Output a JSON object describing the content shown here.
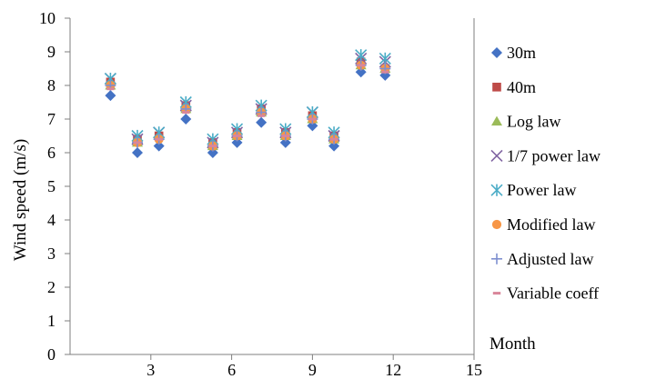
{
  "chart_data": {
    "type": "scatter",
    "ylabel": "Wind speed (m/s)",
    "xlabel": "Month",
    "xlim": [
      0,
      15
    ],
    "ylim": [
      0,
      10
    ],
    "x_ticks": [
      3,
      6,
      9,
      12,
      15
    ],
    "y_ticks": [
      0,
      1,
      2,
      3,
      4,
      5,
      6,
      7,
      8,
      9,
      10
    ],
    "grid": false,
    "legend_position": "right",
    "series": [
      {
        "name": "30m",
        "marker": "diamond",
        "color": "#4472c4",
        "x": [
          1.5,
          2.5,
          3.3,
          4.3,
          5.3,
          6.2,
          7.1,
          8.0,
          9.0,
          9.8,
          10.8,
          11.7
        ],
        "y": [
          7.7,
          6.0,
          6.2,
          7.0,
          6.0,
          6.3,
          6.9,
          6.3,
          6.8,
          6.2,
          8.4,
          8.3
        ]
      },
      {
        "name": "40m",
        "marker": "square",
        "color": "#be4b48",
        "x": [
          1.5,
          2.5,
          3.3,
          4.3,
          5.3,
          6.2,
          7.1,
          8.0,
          9.0,
          9.8,
          10.8,
          11.7
        ],
        "y": [
          8.1,
          6.4,
          6.5,
          7.4,
          6.3,
          6.6,
          7.3,
          6.6,
          7.1,
          6.5,
          8.7,
          8.5
        ]
      },
      {
        "name": "Log law",
        "marker": "triangle",
        "color": "#9bbb59",
        "x": [
          1.5,
          2.5,
          3.3,
          4.3,
          5.3,
          6.2,
          7.1,
          8.0,
          9.0,
          9.8,
          10.8,
          11.7
        ],
        "y": [
          8.0,
          6.3,
          6.5,
          7.3,
          6.2,
          6.5,
          7.2,
          6.5,
          7.0,
          6.4,
          8.6,
          8.5
        ]
      },
      {
        "name": "1/7 power law",
        "marker": "x",
        "color": "#8064a2",
        "x": [
          1.5,
          2.5,
          3.3,
          4.3,
          5.3,
          6.2,
          7.1,
          8.0,
          9.0,
          9.8,
          10.8,
          11.7
        ],
        "y": [
          8.2,
          6.4,
          6.6,
          7.4,
          6.3,
          6.6,
          7.3,
          6.6,
          7.2,
          6.5,
          8.8,
          8.7
        ]
      },
      {
        "name": "Power law",
        "marker": "asterisk",
        "color": "#4bacc6",
        "x": [
          1.5,
          2.5,
          3.3,
          4.3,
          5.3,
          6.2,
          7.1,
          8.0,
          9.0,
          9.8,
          10.8,
          11.7
        ],
        "y": [
          8.2,
          6.5,
          6.6,
          7.5,
          6.4,
          6.7,
          7.4,
          6.7,
          7.2,
          6.6,
          8.9,
          8.8
        ]
      },
      {
        "name": "Modified law",
        "marker": "circle",
        "color": "#f79646",
        "x": [
          1.5,
          2.5,
          3.3,
          4.3,
          5.3,
          6.2,
          7.1,
          8.0,
          9.0,
          9.8,
          10.8,
          11.7
        ],
        "y": [
          8.0,
          6.3,
          6.4,
          7.3,
          6.2,
          6.5,
          7.2,
          6.5,
          7.0,
          6.4,
          8.6,
          8.5
        ]
      },
      {
        "name": "Adjusted law",
        "marker": "plus",
        "color": "#7f8fd0",
        "x": [
          1.5,
          2.5,
          3.3,
          4.3,
          5.3,
          6.2,
          7.1,
          8.0,
          9.0,
          9.8,
          10.8,
          11.7
        ],
        "y": [
          8.0,
          6.3,
          6.4,
          7.3,
          6.2,
          6.5,
          7.2,
          6.5,
          7.0,
          6.4,
          8.6,
          8.5
        ]
      },
      {
        "name": "Variable coeff",
        "marker": "dash",
        "color": "#d9869a",
        "x": [
          1.5,
          2.5,
          3.3,
          4.3,
          5.3,
          6.2,
          7.1,
          8.0,
          9.0,
          9.8,
          10.8,
          11.7
        ],
        "y": [
          7.9,
          6.3,
          6.4,
          7.2,
          6.2,
          6.5,
          7.1,
          6.5,
          7.0,
          6.4,
          8.6,
          8.4
        ]
      }
    ]
  }
}
